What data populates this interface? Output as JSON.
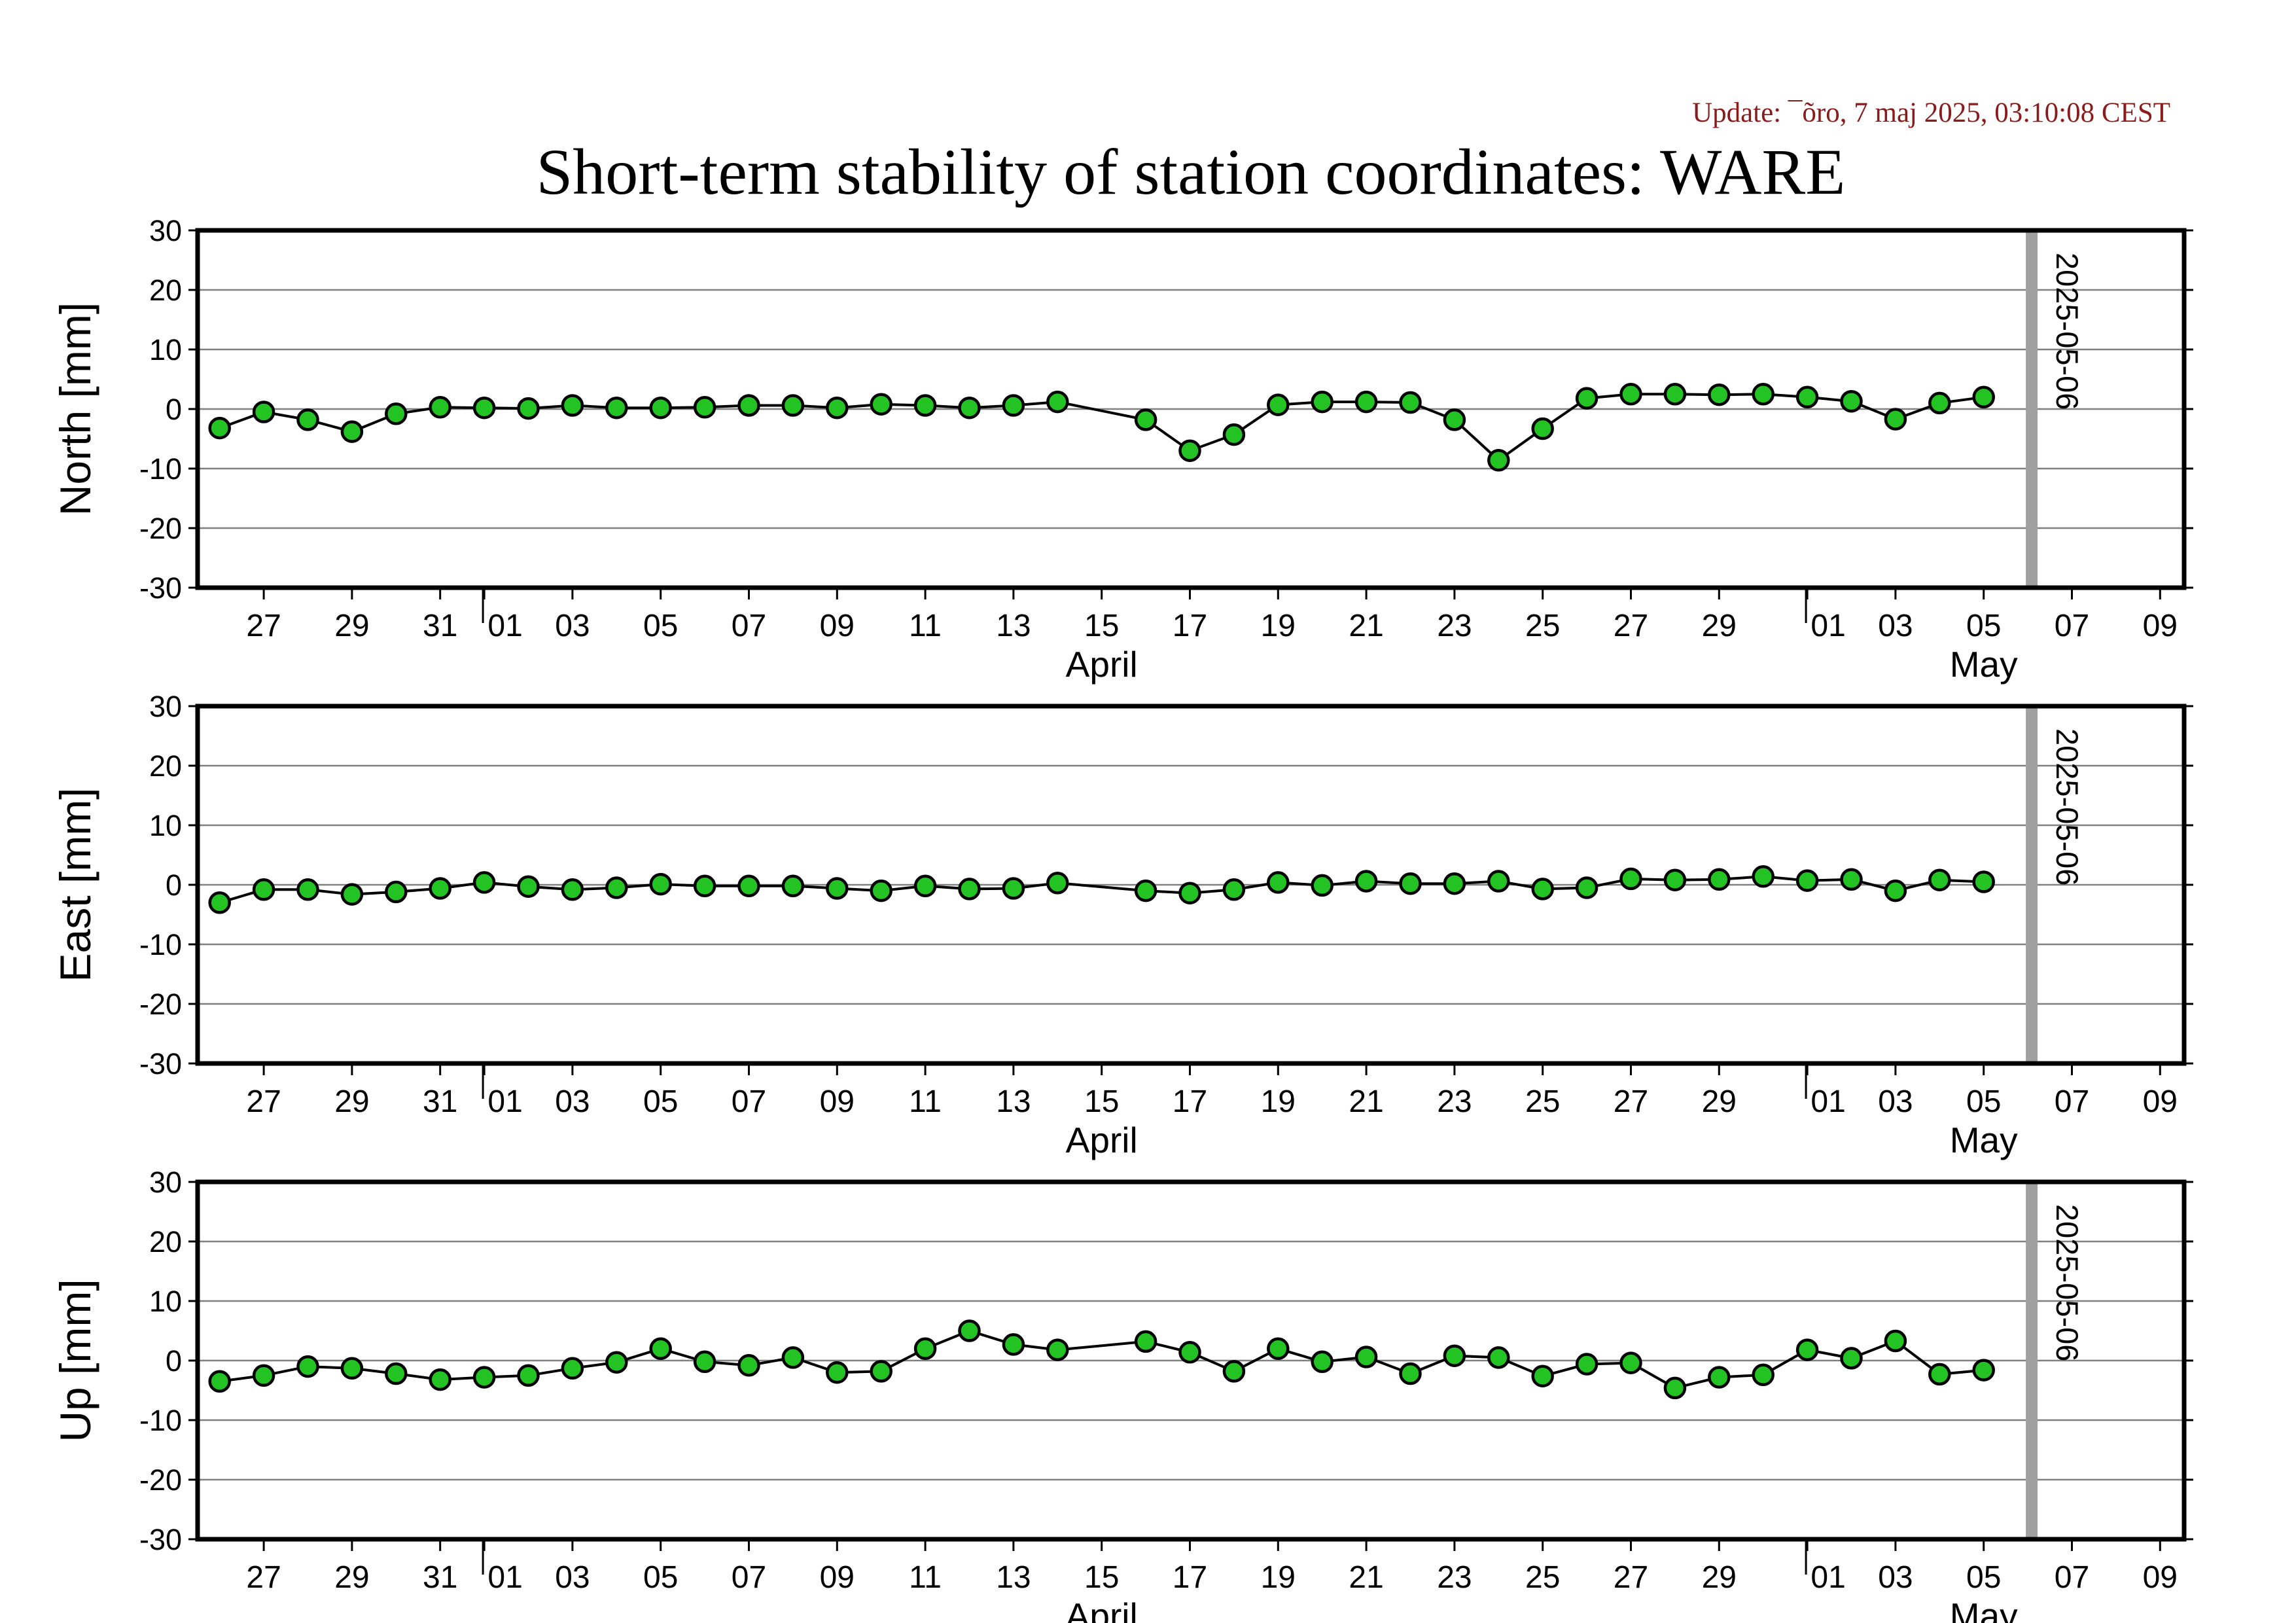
{
  "update_text": "Update: ¯õro, 7 maj 2025, 03:10:08 CEST",
  "title": "Short-term stability of station coordinates: WARE",
  "colors": {
    "marker_fill": "#22c322",
    "marker_stroke": "#000000",
    "line": "#000000",
    "grid": "#808080",
    "vline": "#a0a0a0"
  },
  "chart_data": [
    {
      "type": "line",
      "ylabel": "North [mm]",
      "ylim": [
        -30,
        30
      ],
      "yticks": [
        30,
        20,
        10,
        0,
        -10,
        -20,
        -30
      ],
      "grid": true,
      "x_day_ticks": [
        "27",
        "29",
        "31",
        "01",
        "03",
        "05",
        "07",
        "09",
        "11",
        "13",
        "15",
        "17",
        "19",
        "21",
        "23",
        "25",
        "27",
        "29",
        "01",
        "03",
        "05",
        "07",
        "09"
      ],
      "month_labels": [
        "April",
        "May"
      ],
      "vertical_marker": "2025-05-06",
      "series": [
        {
          "x": [
            "2025-03-26",
            "2025-03-27",
            "2025-03-28",
            "2025-03-29",
            "2025-03-30",
            "2025-03-31",
            "2025-04-01",
            "2025-04-02",
            "2025-04-03",
            "2025-04-04",
            "2025-04-05",
            "2025-04-06",
            "2025-04-07",
            "2025-04-08",
            "2025-04-09",
            "2025-04-10",
            "2025-04-11",
            "2025-04-12",
            "2025-04-13",
            "2025-04-14",
            "2025-04-16",
            "2025-04-17",
            "2025-04-18",
            "2025-04-19",
            "2025-04-20",
            "2025-04-21",
            "2025-04-22",
            "2025-04-23",
            "2025-04-24",
            "2025-04-25",
            "2025-04-26",
            "2025-04-27",
            "2025-04-28",
            "2025-04-29",
            "2025-04-30",
            "2025-05-01",
            "2025-05-02",
            "2025-05-03",
            "2025-05-04",
            "2025-05-05"
          ],
          "y": [
            -3.2,
            -0.5,
            -1.8,
            -3.8,
            -0.8,
            0.3,
            0.2,
            0.1,
            0.6,
            0.2,
            0.2,
            0.3,
            0.6,
            0.6,
            0.2,
            0.8,
            0.6,
            0.2,
            0.6,
            1.2,
            -1.8,
            -7.0,
            -4.3,
            0.7,
            1.2,
            1.2,
            1.1,
            -1.8,
            -8.6,
            -3.3,
            1.8,
            2.5,
            2.5,
            2.4,
            2.5,
            2.0,
            1.3,
            -1.7,
            1.0,
            2.0
          ]
        }
      ]
    },
    {
      "type": "line",
      "ylabel": "East [mm]",
      "ylim": [
        -30,
        30
      ],
      "yticks": [
        30,
        20,
        10,
        0,
        -10,
        -20,
        -30
      ],
      "grid": true,
      "x_day_ticks": [
        "27",
        "29",
        "31",
        "01",
        "03",
        "05",
        "07",
        "09",
        "11",
        "13",
        "15",
        "17",
        "19",
        "21",
        "23",
        "25",
        "27",
        "29",
        "01",
        "03",
        "05",
        "07",
        "09"
      ],
      "month_labels": [
        "April",
        "May"
      ],
      "vertical_marker": "2025-05-06",
      "series": [
        {
          "x": [
            "2025-03-26",
            "2025-03-27",
            "2025-03-28",
            "2025-03-29",
            "2025-03-30",
            "2025-03-31",
            "2025-04-01",
            "2025-04-02",
            "2025-04-03",
            "2025-04-04",
            "2025-04-05",
            "2025-04-06",
            "2025-04-07",
            "2025-04-08",
            "2025-04-09",
            "2025-04-10",
            "2025-04-11",
            "2025-04-12",
            "2025-04-13",
            "2025-04-14",
            "2025-04-16",
            "2025-04-17",
            "2025-04-18",
            "2025-04-19",
            "2025-04-20",
            "2025-04-21",
            "2025-04-22",
            "2025-04-23",
            "2025-04-24",
            "2025-04-25",
            "2025-04-26",
            "2025-04-27",
            "2025-04-28",
            "2025-04-29",
            "2025-04-30",
            "2025-05-01",
            "2025-05-02",
            "2025-05-03",
            "2025-05-04",
            "2025-05-05"
          ],
          "y": [
            -3.0,
            -0.8,
            -0.8,
            -1.6,
            -1.2,
            -0.6,
            0.4,
            -0.3,
            -0.8,
            -0.5,
            0.1,
            -0.2,
            -0.2,
            -0.2,
            -0.6,
            -1.0,
            -0.2,
            -0.7,
            -0.6,
            0.3,
            -1.0,
            -1.4,
            -0.8,
            0.4,
            -0.1,
            0.6,
            0.2,
            0.2,
            0.6,
            -0.7,
            -0.5,
            1.0,
            0.8,
            0.9,
            1.4,
            0.7,
            0.9,
            -1.0,
            0.8,
            0.5
          ]
        }
      ]
    },
    {
      "type": "line",
      "ylabel": "Up [mm]",
      "ylim": [
        -30,
        30
      ],
      "yticks": [
        30,
        20,
        10,
        0,
        -10,
        -20,
        -30
      ],
      "grid": true,
      "x_day_ticks": [
        "27",
        "29",
        "31",
        "01",
        "03",
        "05",
        "07",
        "09",
        "11",
        "13",
        "15",
        "17",
        "19",
        "21",
        "23",
        "25",
        "27",
        "29",
        "01",
        "03",
        "05",
        "07",
        "09"
      ],
      "month_labels": [
        "April",
        "May"
      ],
      "vertical_marker": "2025-05-06",
      "series": [
        {
          "x": [
            "2025-03-26",
            "2025-03-27",
            "2025-03-28",
            "2025-03-29",
            "2025-03-30",
            "2025-03-31",
            "2025-04-01",
            "2025-04-02",
            "2025-04-03",
            "2025-04-04",
            "2025-04-05",
            "2025-04-06",
            "2025-04-07",
            "2025-04-08",
            "2025-04-09",
            "2025-04-10",
            "2025-04-11",
            "2025-04-12",
            "2025-04-13",
            "2025-04-14",
            "2025-04-16",
            "2025-04-17",
            "2025-04-18",
            "2025-04-19",
            "2025-04-20",
            "2025-04-21",
            "2025-04-22",
            "2025-04-23",
            "2025-04-24",
            "2025-04-25",
            "2025-04-26",
            "2025-04-27",
            "2025-04-28",
            "2025-04-29",
            "2025-04-30",
            "2025-05-01",
            "2025-05-02",
            "2025-05-03",
            "2025-05-04",
            "2025-05-05"
          ],
          "y": [
            -3.5,
            -2.5,
            -1.0,
            -1.3,
            -2.2,
            -3.2,
            -2.8,
            -2.5,
            -1.3,
            -0.3,
            2.0,
            -0.2,
            -0.8,
            0.5,
            -2.0,
            -1.8,
            2.0,
            5.0,
            2.7,
            1.8,
            3.2,
            1.4,
            -1.8,
            2.0,
            -0.2,
            0.6,
            -2.2,
            0.8,
            0.5,
            -2.6,
            -0.6,
            -0.4,
            -4.6,
            -2.8,
            -2.4,
            1.8,
            0.4,
            3.3,
            -2.3,
            -1.6
          ]
        }
      ]
    }
  ]
}
